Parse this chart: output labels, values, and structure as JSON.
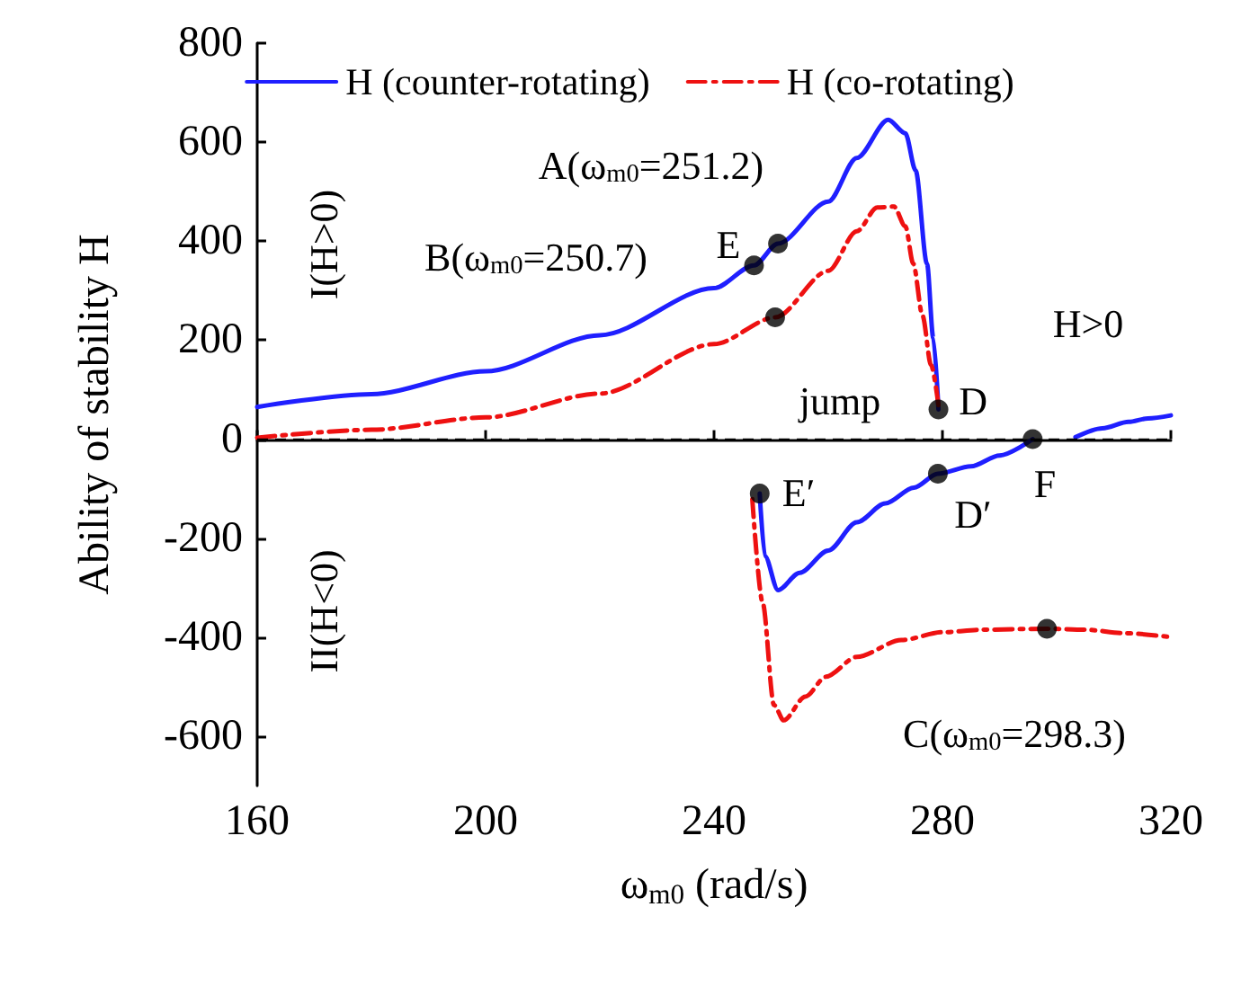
{
  "chart_data": {
    "type": "line",
    "xlabel": "ω$_{m0}$ (rad/s)",
    "ylabel": "Ability of stability H",
    "xlim": [
      160,
      320
    ],
    "xticks": [
      160,
      200,
      240,
      280,
      320
    ],
    "ylim": [
      -700,
      800
    ],
    "yticks": [
      -600,
      -400,
      -200,
      0,
      200,
      400,
      600,
      800
    ],
    "grid": false,
    "legend": "top",
    "marker": "none",
    "series": [
      {
        "name": "H (counter-rotating)",
        "color": "#1f1fff",
        "line_style": "solid",
        "x": [
          160,
          180,
          200,
          220,
          240,
          247,
          251.2,
          260,
          265,
          270.5,
          273.5,
          275.3,
          277.3,
          278.4,
          279.3
        ],
        "values": [
          65,
          91,
          137,
          210,
          305,
          351,
          395,
          480,
          568,
          645,
          618,
          543,
          354,
          204,
          60
        ]
      },
      {
        "color": "#1f1fff",
        "line_style": "solid",
        "x": [
          248,
          248.9,
          251.2,
          255,
          260,
          265,
          270,
          275,
          279.2,
          285,
          290,
          295.8
        ],
        "values": [
          -110,
          -236,
          -305,
          -270,
          -225,
          -168,
          -130,
          -98,
          -70,
          -55,
          -33,
          0
        ]
      },
      {
        "color": "#1f1fff",
        "line_style": "solid",
        "x": [
          303.3,
          308,
          312.6,
          316,
          320
        ],
        "values": [
          4,
          22,
          35,
          42,
          48
        ]
      },
      {
        "name": "H (co-rotating)",
        "color": "#ee1111",
        "line_style": "dashed",
        "x": [
          160,
          180,
          200,
          220,
          240,
          250.7,
          260,
          265,
          268.6,
          271.5,
          273.5,
          274.9,
          276.5,
          278,
          279.4
        ],
        "values": [
          3,
          19,
          44,
          92,
          192,
          246,
          340,
          420,
          468,
          470,
          430,
          354,
          250,
          150,
          60
        ]
      },
      {
        "color": "#ee1111",
        "line_style": "dashed",
        "x": [
          246.7,
          248.5,
          250.5,
          252.2,
          256,
          259.6,
          265,
          272.8,
          280,
          287,
          298.3,
          305,
          312,
          320
        ],
        "values": [
          -121,
          -330,
          -537,
          -568,
          -520,
          -480,
          -440,
          -406,
          -390,
          -385,
          -383,
          -385,
          -392,
          -400
        ]
      },
      {
        "type": "scatter",
        "color": "#000000",
        "marker": "circle",
        "x": [
          251.2,
          250.7,
          247,
          279.3,
          248,
          279.2,
          295.8,
          298.3
        ],
        "values": [
          395,
          246,
          351,
          60,
          -110,
          -70,
          0,
          -383
        ]
      }
    ],
    "ref_lines": [
      {
        "axis": "y",
        "value": 0,
        "color": "#000000",
        "line_style": "dashed"
      }
    ],
    "annotations": [
      "A(ω$_{m0}$=251.2)",
      "E",
      "B(ω$_{m0}$=250.7)",
      "D",
      "jump",
      "H>0",
      "I(H>0)",
      "II(H<0)",
      "E′",
      "D′",
      "F",
      "C(ω$_{m0}$=298.3)"
    ]
  }
}
